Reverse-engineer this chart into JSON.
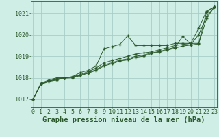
{
  "bg_color": "#ceeee6",
  "grid_color": "#a8cec8",
  "line_color": "#2d5a2d",
  "xlabel": "Graphe pression niveau de la mer (hPa)",
  "xlabel_fontsize": 7.5,
  "tick_fontsize": 6.0,
  "ytick_labels": [
    "1017",
    "1018",
    "1019",
    "1020",
    "1021"
  ],
  "ytick_values": [
    1017,
    1018,
    1019,
    1020,
    1021
  ],
  "xtick_values": [
    0,
    1,
    2,
    3,
    4,
    5,
    6,
    7,
    8,
    9,
    10,
    11,
    12,
    13,
    14,
    15,
    16,
    17,
    18,
    19,
    20,
    21,
    22,
    23
  ],
  "ylim": [
    1016.65,
    1021.55
  ],
  "xlim": [
    -0.3,
    23.3
  ],
  "series": [
    [
      1017.0,
      1017.75,
      1017.9,
      1018.0,
      1018.0,
      1018.05,
      1018.25,
      1018.35,
      1018.55,
      1019.35,
      1019.45,
      1019.55,
      1019.95,
      1019.5,
      1019.5,
      1019.5,
      1019.5,
      1019.5,
      1019.6,
      1019.6,
      1019.6,
      1019.6,
      1021.05,
      1021.3
    ],
    [
      1017.0,
      1017.72,
      1017.85,
      1017.95,
      1018.0,
      1018.05,
      1018.15,
      1018.3,
      1018.45,
      1018.7,
      1018.8,
      1018.9,
      1019.0,
      1019.1,
      1019.15,
      1019.2,
      1019.3,
      1019.4,
      1019.5,
      1019.55,
      1019.6,
      1020.3,
      1021.1,
      1021.3
    ],
    [
      1017.0,
      1017.72,
      1017.85,
      1017.93,
      1018.0,
      1018.03,
      1018.12,
      1018.25,
      1018.38,
      1018.6,
      1018.7,
      1018.82,
      1018.88,
      1019.0,
      1019.05,
      1019.15,
      1019.22,
      1019.32,
      1019.42,
      1019.93,
      1019.55,
      1020.0,
      1020.85,
      1021.3
    ],
    [
      1017.0,
      1017.7,
      1017.83,
      1017.9,
      1017.98,
      1018.0,
      1018.1,
      1018.22,
      1018.35,
      1018.55,
      1018.65,
      1018.78,
      1018.83,
      1018.95,
      1019.0,
      1019.12,
      1019.2,
      1019.28,
      1019.38,
      1019.48,
      1019.52,
      1019.58,
      1020.75,
      1021.3
    ]
  ]
}
